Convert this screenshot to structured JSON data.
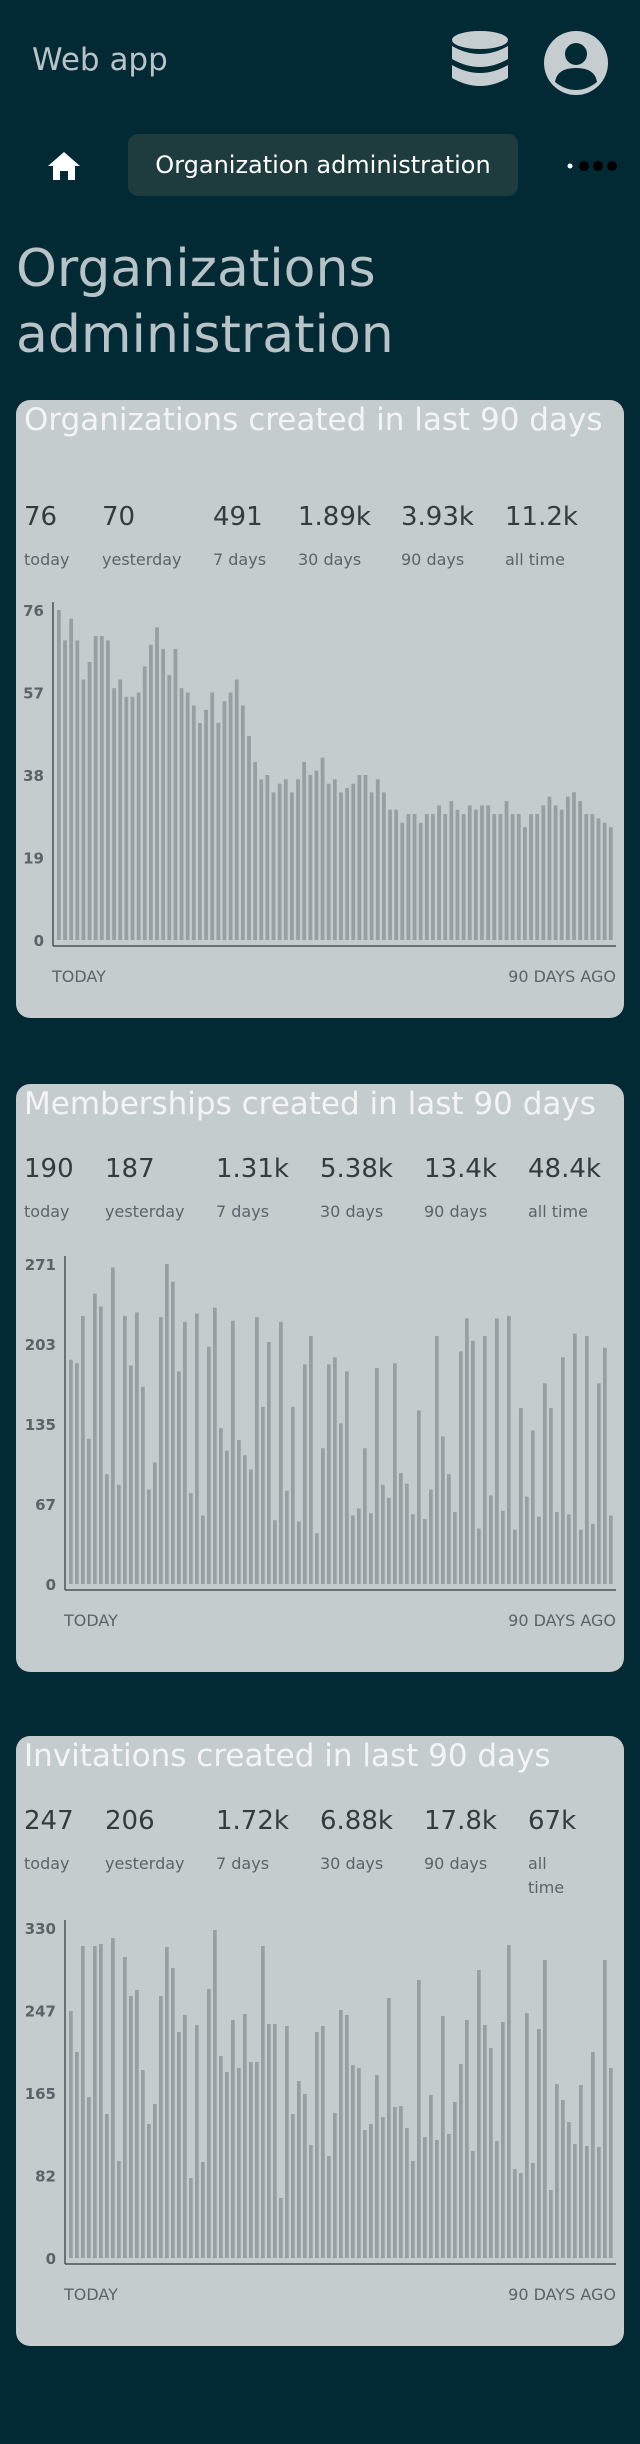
{
  "header": {
    "app_title": "Web app",
    "db_icon": "database-icon",
    "user_icon": "user-avatar-icon"
  },
  "breadcrumb": {
    "home_icon": "home-icon",
    "current_label": "Organization administration",
    "more_icon": "more-horizontal-icon"
  },
  "page": {
    "title": "Organizations administration"
  },
  "colors": {
    "background": "#022a35",
    "card": "#c4ccce",
    "bar": "#96a0a3",
    "crumb_pill": "#1e3c3e"
  },
  "cards": [
    {
      "title": "Organizations created in last 90 days",
      "stats": [
        {
          "value": "76",
          "label": "today"
        },
        {
          "value": "70",
          "label": "yesterday"
        },
        {
          "value": "491",
          "label": "7 days"
        },
        {
          "value": "1.89k",
          "label": "30 days"
        },
        {
          "value": "3.93k",
          "label": "90 days"
        },
        {
          "value": "11.2k",
          "label": "all time"
        }
      ],
      "chart_data": {
        "type": "bar",
        "x_start_label": "TODAY",
        "x_end_label": "90 DAYS AGO",
        "y_ticks": [
          "76",
          "57",
          "38",
          "19",
          "0"
        ],
        "ylim": [
          0,
          76
        ],
        "values": [
          76,
          69,
          74,
          69,
          60,
          64,
          70,
          70,
          69,
          58,
          60,
          56,
          56,
          57,
          63,
          68,
          72,
          67,
          61,
          67,
          58,
          57,
          54,
          50,
          53,
          57,
          50,
          55,
          57,
          60,
          54,
          47,
          41,
          37,
          38,
          34,
          36,
          37,
          34,
          37,
          41,
          38,
          39,
          42,
          36,
          37,
          34,
          35,
          36,
          38,
          38,
          34,
          37,
          34,
          30,
          30,
          27,
          29,
          29,
          27,
          29,
          29,
          31,
          29,
          32,
          30,
          29,
          31,
          30,
          31,
          31,
          29,
          29,
          32,
          29,
          29,
          26,
          29,
          29,
          31,
          33,
          31,
          30,
          33,
          34,
          32,
          29,
          29,
          28,
          27,
          26
        ]
      }
    },
    {
      "title": "Memberships created in last 90 days",
      "stats": [
        {
          "value": "190",
          "label": "today"
        },
        {
          "value": "187",
          "label": "yesterday"
        },
        {
          "value": "1.31k",
          "label": "7 days"
        },
        {
          "value": "5.38k",
          "label": "30 days"
        },
        {
          "value": "13.4k",
          "label": "90 days"
        },
        {
          "value": "48.4k",
          "label": "all time"
        }
      ],
      "chart_data": {
        "type": "bar",
        "x_start_label": "TODAY",
        "x_end_label": "90 DAYS AGO",
        "y_ticks": [
          "271",
          "203",
          "135",
          "67",
          "0"
        ],
        "ylim": [
          0,
          271
        ],
        "values": [
          190,
          187,
          227,
          123,
          246,
          235,
          93,
          268,
          84,
          227,
          185,
          230,
          167,
          80,
          103,
          226,
          271,
          256,
          180,
          222,
          77,
          229,
          58,
          201,
          234,
          132,
          113,
          223,
          122,
          109,
          97,
          226,
          150,
          205,
          54,
          222,
          79,
          150,
          53,
          186,
          210,
          43,
          115,
          186,
          192,
          136,
          180,
          58,
          64,
          115,
          60,
          183,
          84,
          73,
          187,
          94,
          85,
          59,
          147,
          55,
          80,
          210,
          125,
          93,
          61,
          197,
          225,
          206,
          47,
          210,
          75,
          225,
          62,
          227,
          46,
          149,
          74,
          130,
          57,
          170,
          149,
          61,
          192,
          59,
          212,
          46,
          210,
          51,
          170,
          200,
          58
        ]
      }
    },
    {
      "title": "Invitations created in last 90 days",
      "stats": [
        {
          "value": "247",
          "label": "today"
        },
        {
          "value": "206",
          "label": "yesterday"
        },
        {
          "value": "1.72k",
          "label": "7 days"
        },
        {
          "value": "6.88k",
          "label": "30 days"
        },
        {
          "value": "17.8k",
          "label": "90 days"
        },
        {
          "value": "67k",
          "label": "all time"
        }
      ],
      "chart_data": {
        "type": "bar",
        "x_start_label": "TODAY",
        "x_end_label": "90 DAYS AGO",
        "y_ticks": [
          "330",
          "247",
          "165",
          "82",
          "0"
        ],
        "ylim": [
          0,
          330
        ],
        "values": [
          247,
          206,
          312,
          161,
          312,
          314,
          144,
          320,
          97,
          301,
          262,
          268,
          188,
          134,
          154,
          262,
          311,
          290,
          226,
          243,
          80,
          233,
          96,
          269,
          328,
          202,
          186,
          238,
          190,
          244,
          196,
          196,
          312,
          234,
          234,
          60,
          232,
          144,
          177,
          164,
          113,
          226,
          232,
          102,
          145,
          248,
          243,
          193,
          190,
          128,
          134,
          183,
          141,
          260,
          151,
          152,
          130,
          97,
          278,
          121,
          163,
          118,
          242,
          124,
          156,
          194,
          238,
          107,
          288,
          233,
          210,
          117,
          236,
          313,
          89,
          85,
          245,
          95,
          229,
          298,
          68,
          174,
          158,
          136,
          114,
          173,
          112,
          206,
          111,
          298,
          190
        ]
      }
    }
  ]
}
